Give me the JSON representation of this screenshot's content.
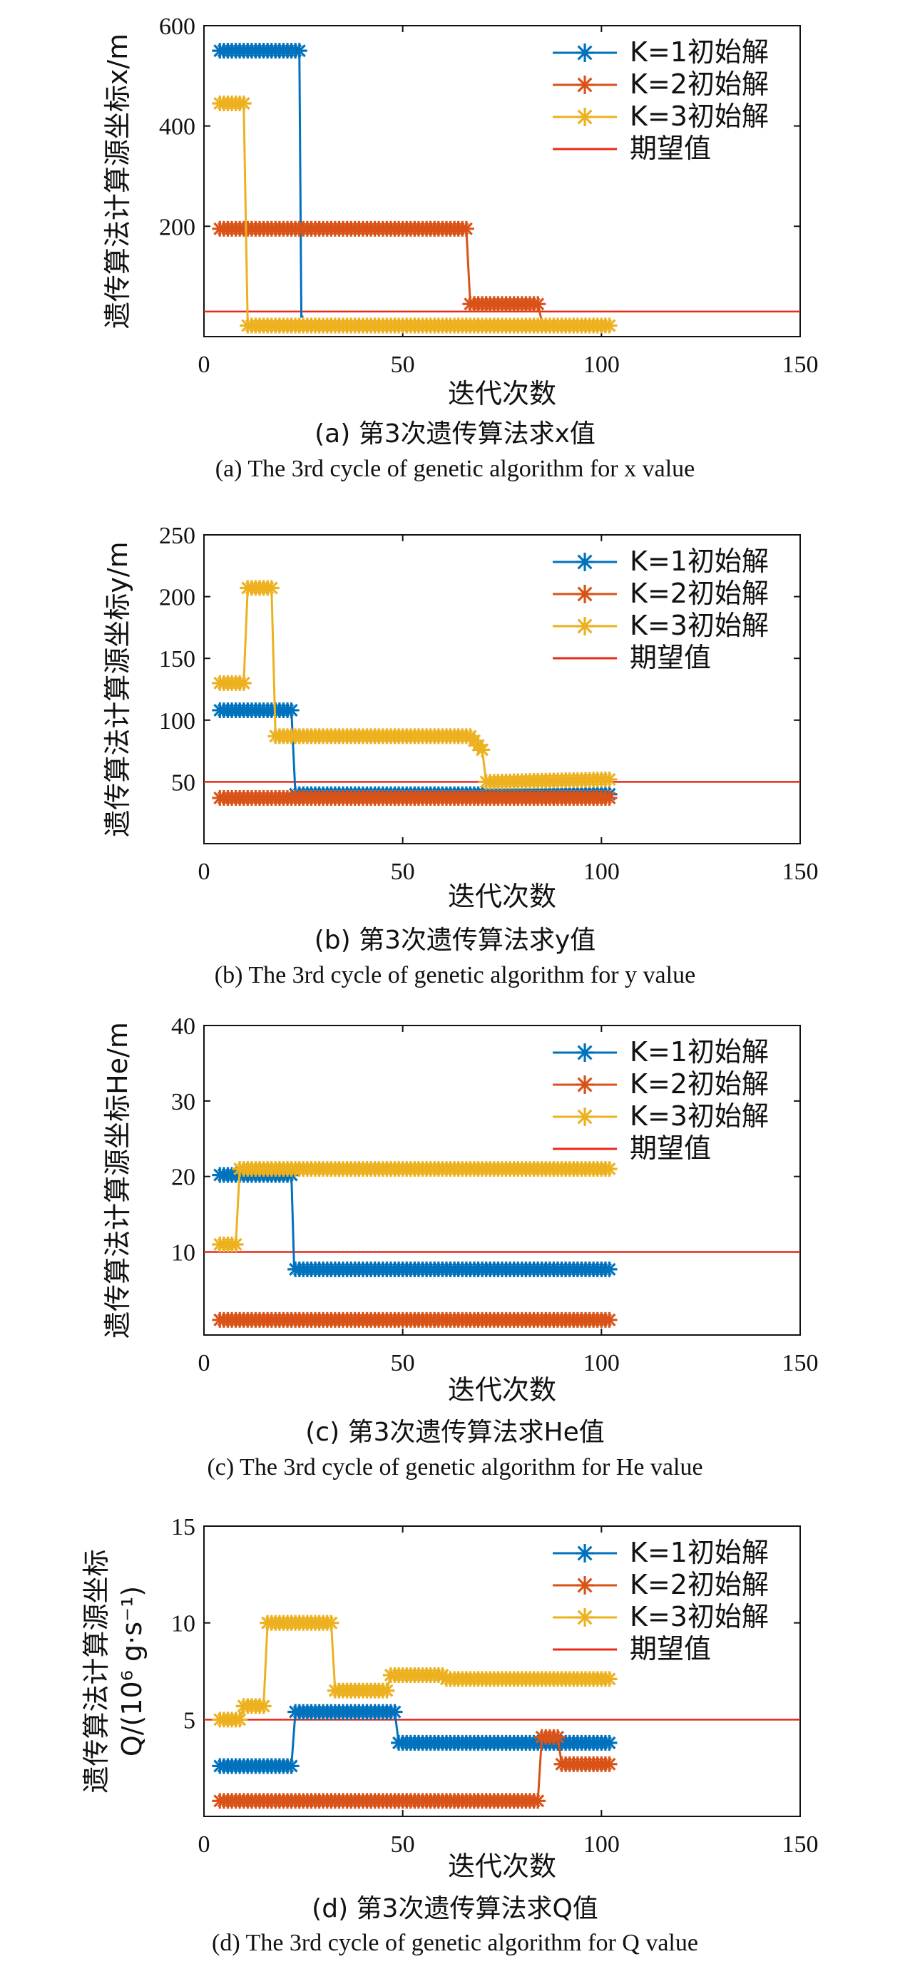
{
  "colors": {
    "k1": "#0072BD",
    "k2": "#D95319",
    "k3": "#EDB120",
    "expected": "#E8291C",
    "axis": "#111111"
  },
  "chart_data": [
    {
      "type": "line",
      "panel": "a",
      "ylabel": "遗传算法计算源坐标x/m",
      "xlabel": "迭代次数",
      "caption_cn": "(a) 第3次遗传算法求x值",
      "caption_en": "(a) The 3rd cycle of genetic algorithm for x value",
      "xlim": [
        0,
        150
      ],
      "ylim": [
        -20,
        600
      ],
      "xticks": [
        "0",
        "50",
        "100",
        "150"
      ],
      "xtick_values": [
        0,
        50,
        100,
        150
      ],
      "yticks": [
        "200",
        "400",
        "600"
      ],
      "ytick_values": [
        200,
        400,
        600
      ],
      "legend": [
        "K=1初始解",
        "K=2初始解",
        "K=3初始解",
        "期望值"
      ],
      "series": [
        {
          "name": "K=1初始解",
          "x": [
            4,
            24,
            24.5,
            25
          ],
          "y": [
            550,
            550,
            20,
            20
          ],
          "marker_range": [
            4,
            24
          ]
        },
        {
          "name": "K=2初始解",
          "x": [
            4,
            66,
            67,
            84,
            85
          ],
          "y": [
            195,
            195,
            45,
            45,
            10
          ],
          "marker_range": [
            4,
            84
          ]
        },
        {
          "name": "K=3初始解",
          "x": [
            4,
            10,
            11,
            102
          ],
          "y": [
            445,
            445,
            2,
            2
          ],
          "marker_range": [
            4,
            102
          ]
        }
      ],
      "expected": {
        "name": "期望值",
        "value": 30
      }
    },
    {
      "type": "line",
      "panel": "b",
      "ylabel": "遗传算法计算源坐标y/m",
      "xlabel": "迭代次数",
      "caption_cn": "(b) 第3次遗传算法求y值",
      "caption_en": "(b) The 3rd cycle of genetic algorithm for y value",
      "xlim": [
        0,
        150
      ],
      "ylim": [
        0,
        250
      ],
      "xticks": [
        "0",
        "50",
        "100",
        "150"
      ],
      "xtick_values": [
        0,
        50,
        100,
        150
      ],
      "yticks": [
        "50",
        "100",
        "150",
        "200",
        "250"
      ],
      "ytick_values": [
        50,
        100,
        150,
        200,
        250
      ],
      "legend": [
        "K=1初始解",
        "K=2初始解",
        "K=3初始解",
        "期望值"
      ],
      "series": [
        {
          "name": "K=1初始解",
          "x": [
            4,
            22,
            23,
            102
          ],
          "y": [
            108,
            108,
            40,
            40
          ],
          "marker_range": [
            4,
            102
          ]
        },
        {
          "name": "K=2初始解",
          "x": [
            4,
            102
          ],
          "y": [
            37,
            37
          ],
          "marker_range": [
            4,
            102
          ]
        },
        {
          "name": "K=3初始解",
          "x": [
            4,
            10,
            11,
            17,
            18,
            67,
            70,
            71,
            102
          ],
          "y": [
            130,
            130,
            207,
            207,
            87,
            87,
            76,
            50,
            52
          ],
          "marker_range": [
            4,
            102
          ]
        }
      ],
      "expected": {
        "name": "期望值",
        "value": 50
      }
    },
    {
      "type": "line",
      "panel": "c",
      "ylabel": "遗传算法计算源坐标He/m",
      "xlabel": "迭代次数",
      "caption_cn": "(c) 第3次遗传算法求He值",
      "caption_en": "(c) The 3rd cycle of genetic algorithm for He value",
      "xlim": [
        0,
        150
      ],
      "ylim": [
        -1,
        40
      ],
      "xticks": [
        "0",
        "50",
        "100",
        "150"
      ],
      "xtick_values": [
        0,
        50,
        100,
        150
      ],
      "yticks": [
        "10",
        "20",
        "30",
        "40"
      ],
      "ytick_values": [
        10,
        20,
        30,
        40
      ],
      "legend": [
        "K=1初始解",
        "K=2初始解",
        "K=3初始解",
        "期望值"
      ],
      "series": [
        {
          "name": "K=1初始解",
          "x": [
            4,
            22,
            22.7,
            102
          ],
          "y": [
            20.2,
            20.2,
            7.7,
            7.7
          ],
          "marker_range": [
            4,
            102
          ]
        },
        {
          "name": "K=2初始解",
          "x": [
            4,
            102
          ],
          "y": [
            1,
            1
          ],
          "marker_range": [
            4,
            102
          ]
        },
        {
          "name": "K=3初始解",
          "x": [
            4,
            8,
            9,
            102
          ],
          "y": [
            11,
            11,
            21,
            21
          ],
          "marker_range": [
            4,
            102
          ]
        }
      ],
      "expected": {
        "name": "期望值",
        "value": 10
      }
    },
    {
      "type": "line",
      "panel": "d",
      "ylabel_line1": "遗传算法计算源坐标",
      "ylabel_line2": "Q/(10⁶ g·s⁻¹)",
      "xlabel": "迭代次数",
      "caption_cn": "(d) 第3次遗传算法求Q值",
      "caption_en": "(d) The 3rd cycle of genetic algorithm for Q value",
      "xlim": [
        0,
        150
      ],
      "ylim": [
        0,
        15
      ],
      "xticks": [
        "0",
        "50",
        "100",
        "150"
      ],
      "xtick_values": [
        0,
        50,
        100,
        150
      ],
      "yticks": [
        "5",
        "10",
        "15"
      ],
      "ytick_values": [
        5,
        10,
        15
      ],
      "legend": [
        "K=1初始解",
        "K=2初始解",
        "K=3初始解",
        "期望值"
      ],
      "series": [
        {
          "name": "K=1初始解",
          "x": [
            4,
            22,
            23,
            48,
            49,
            102
          ],
          "y": [
            2.6,
            2.6,
            5.4,
            5.4,
            3.8,
            3.8
          ],
          "marker_range": [
            4,
            102
          ]
        },
        {
          "name": "K=2初始解",
          "x": [
            4,
            84,
            85,
            89,
            90,
            102
          ],
          "y": [
            0.8,
            0.8,
            4.1,
            4.1,
            2.7,
            2.7
          ],
          "marker_range": [
            4,
            102
          ]
        },
        {
          "name": "K=3初始解",
          "x": [
            4,
            9,
            10,
            15,
            16,
            32,
            33,
            46,
            47,
            60,
            61,
            102
          ],
          "y": [
            5,
            5,
            5.7,
            5.7,
            10,
            10,
            6.5,
            6.5,
            7.3,
            7.3,
            7.1,
            7.1
          ],
          "marker_range": [
            4,
            102
          ]
        }
      ],
      "expected": {
        "name": "期望值",
        "value": 5
      }
    }
  ]
}
